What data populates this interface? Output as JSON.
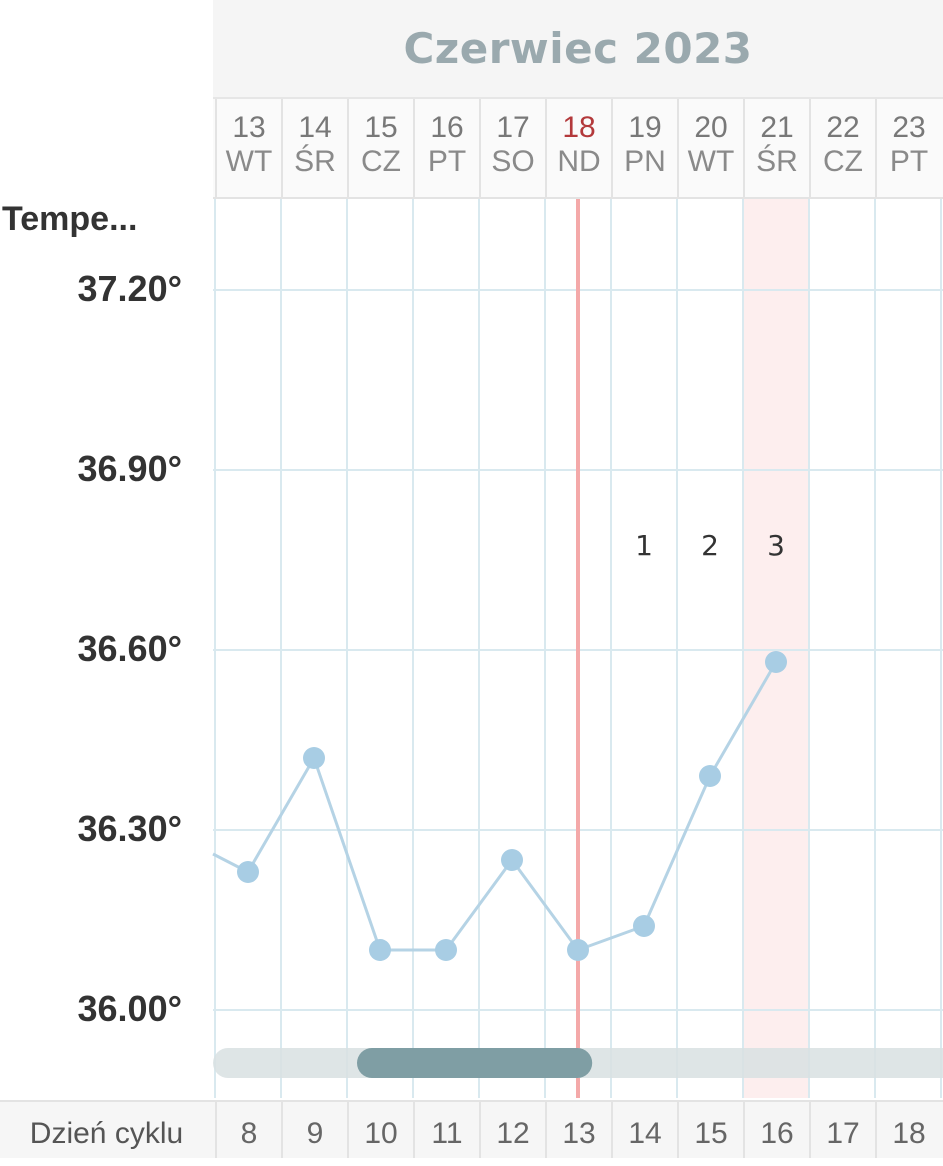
{
  "header": {
    "month_title": "Czerwiec 2023"
  },
  "y_axis": {
    "title": "Tempe...",
    "ticks": [
      "37.20°",
      "36.90°",
      "36.60°",
      "36.30°",
      "36.00°"
    ]
  },
  "bottom": {
    "cycle_label": "Dzień cyklu"
  },
  "colors": {
    "line": "#b5d3e5",
    "point": "#a8cde4",
    "today_line": "#f4a9a9",
    "highlight": "#fdeeee",
    "grid": "#d9e9ef",
    "scroll_track": "#d8e0e2",
    "scroll_thumb": "#7f9ea4"
  },
  "chart_data": {
    "type": "line",
    "title": "Czerwiec 2023",
    "ylabel": "Tempe...",
    "xlabel": "Dzień cyklu",
    "ylim": [
      35.85,
      37.35
    ],
    "y_ticks": [
      37.2,
      36.9,
      36.6,
      36.3,
      36.0
    ],
    "days": [
      {
        "date": "13",
        "weekday": "WT",
        "cycle_day": "8"
      },
      {
        "date": "14",
        "weekday": "ŚR",
        "cycle_day": "9"
      },
      {
        "date": "15",
        "weekday": "CZ",
        "cycle_day": "10"
      },
      {
        "date": "16",
        "weekday": "PT",
        "cycle_day": "11"
      },
      {
        "date": "17",
        "weekday": "SO",
        "cycle_day": "12"
      },
      {
        "date": "18",
        "weekday": "ND",
        "cycle_day": "13"
      },
      {
        "date": "19",
        "weekday": "PN",
        "cycle_day": "14"
      },
      {
        "date": "20",
        "weekday": "WT",
        "cycle_day": "15"
      },
      {
        "date": "21",
        "weekday": "ŚR",
        "cycle_day": "16"
      },
      {
        "date": "22",
        "weekday": "CZ",
        "cycle_day": "17"
      },
      {
        "date": "23",
        "weekday": "PT",
        "cycle_day": "18"
      }
    ],
    "series": [
      {
        "values": [
          36.23,
          36.42,
          36.1,
          36.1,
          36.25,
          36.1,
          36.14,
          36.39,
          36.58
        ]
      }
    ],
    "previous_value": 36.26,
    "today_date": "18",
    "highlight_date": "21",
    "annotations": [
      {
        "date": "19",
        "text": "1"
      },
      {
        "date": "20",
        "text": "2"
      },
      {
        "date": "21",
        "text": "3"
      }
    ],
    "scroll": {
      "visible_start_fraction": 0.2,
      "visible_end_fraction": 0.52
    }
  }
}
